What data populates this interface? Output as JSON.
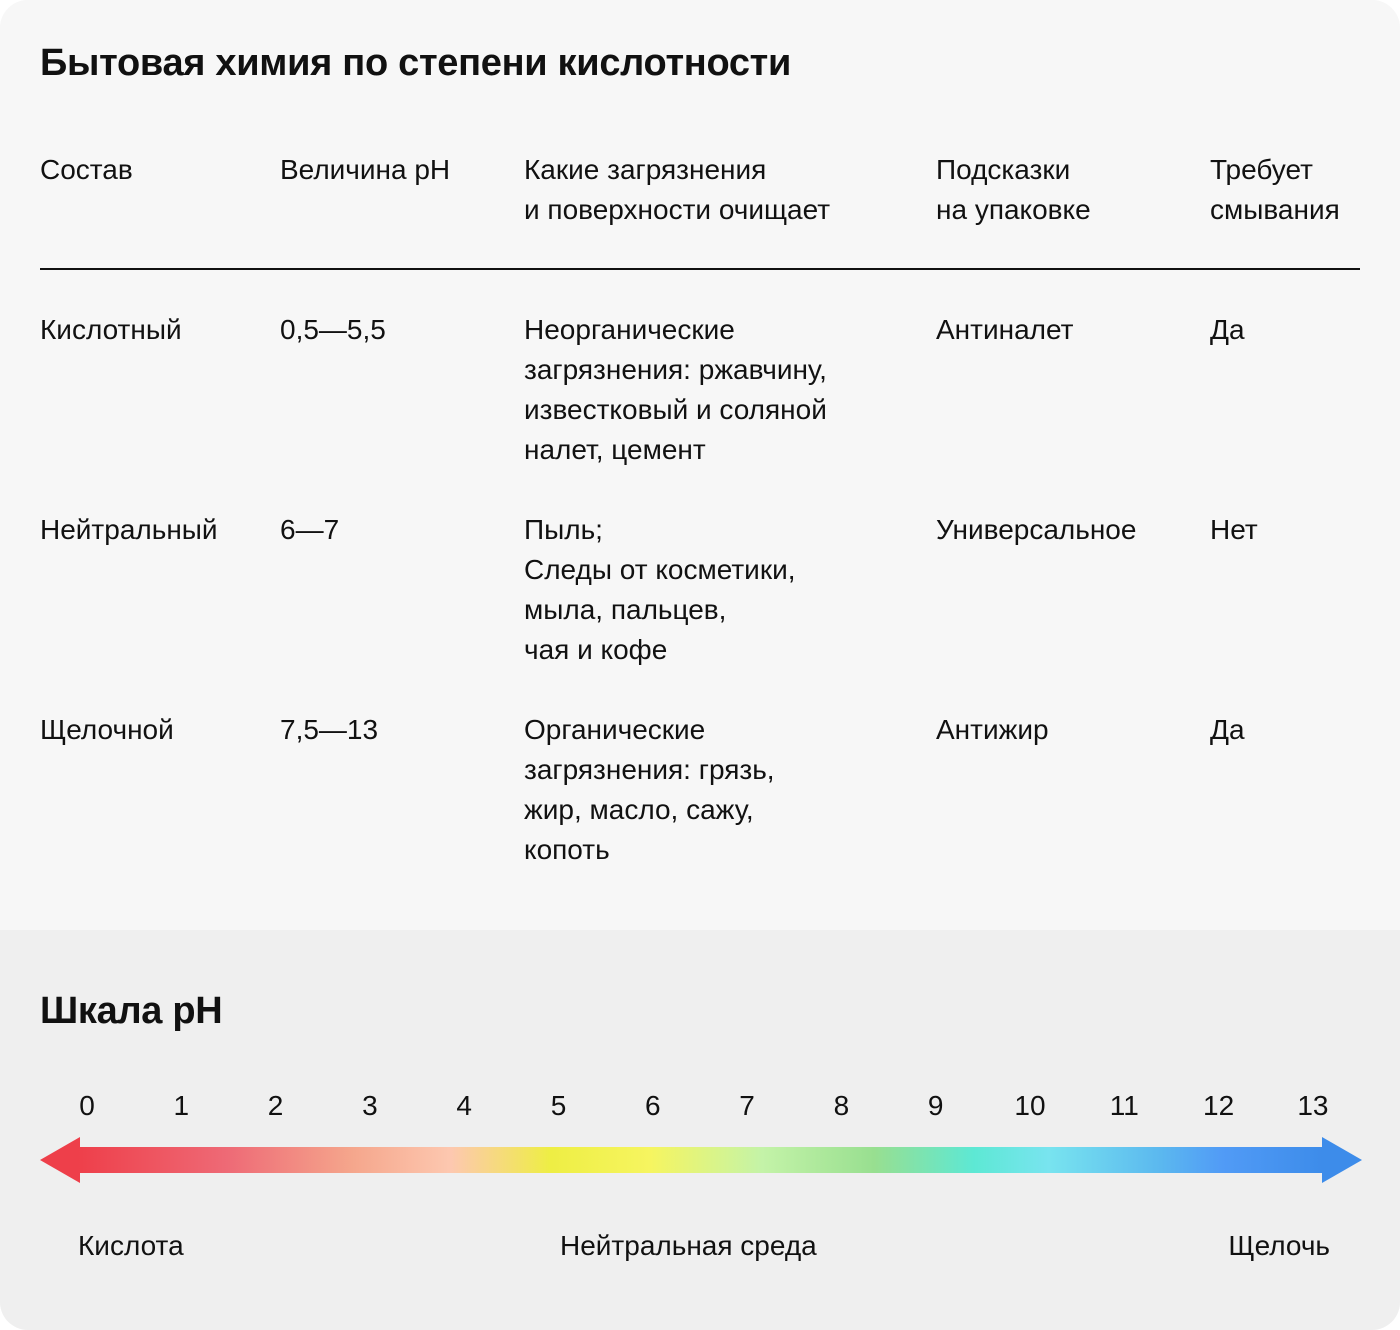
{
  "title": "Бытовая химия по степени кислотности",
  "table": {
    "headers": [
      "Состав",
      "Величина pH",
      "Какие загрязнения\nи поверхности очищает",
      "Подсказки\nна упаковке",
      "Требует\nсмывания"
    ],
    "rows": [
      [
        "Кислотный",
        "0,5—5,5",
        "Неорганические\nзагрязнения: ржавчину,\nизвестковый и соляной\nналет, цемент",
        "Антиналет",
        "Да"
      ],
      [
        "Нейтральный",
        "6—7",
        "Пыль;\nСледы от косметики,\nмыла, пальцев,\nчая и кофе",
        "Универсальное",
        "Нет"
      ],
      [
        "Щелочной",
        "7,5—13",
        "Органические\nзагрязнения: грязь,\nжир, масло, сажу,\nкопоть",
        "Антижир",
        "Да"
      ]
    ]
  },
  "scale": {
    "title": "Шкала pH",
    "ticks": [
      "0",
      "1",
      "2",
      "3",
      "4",
      "5",
      "6",
      "7",
      "8",
      "9",
      "10",
      "11",
      "12",
      "13"
    ],
    "labels": {
      "acid": "Кислота",
      "neutral": "Нейтральная среда",
      "alkali": "Щелочь"
    },
    "colors": {
      "acid": "#ee3f4a",
      "alkali": "#3d8cea"
    }
  }
}
